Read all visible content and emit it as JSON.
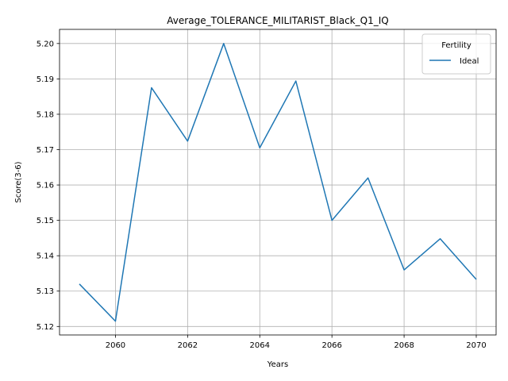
{
  "chart_data": {
    "type": "line",
    "title": "Average_TOLERANCE_MILITARIST_Black_Q1_IQ",
    "xlabel": "Years",
    "ylabel": "Score(3-6)",
    "x": [
      2059,
      2060,
      2061,
      2062,
      2063,
      2064,
      2065,
      2066,
      2067,
      2068,
      2069,
      2070
    ],
    "series": [
      {
        "name": "Ideal",
        "color": "#1f77b4",
        "values": [
          5.132,
          5.1215,
          5.1875,
          5.1724,
          5.2,
          5.1705,
          5.1894,
          5.15,
          5.162,
          5.136,
          5.1448,
          5.1333
        ]
      }
    ],
    "xlim": [
      2058.45,
      2070.55
    ],
    "ylim": [
      5.1176,
      5.204
    ],
    "xticks": [
      2060,
      2062,
      2064,
      2066,
      2068,
      2070
    ],
    "yticks": [
      5.12,
      5.13,
      5.14,
      5.15,
      5.16,
      5.17,
      5.18,
      5.19,
      5.2
    ],
    "ytick_labels": [
      "5.12",
      "5.13",
      "5.14",
      "5.15",
      "5.16",
      "5.17",
      "5.18",
      "5.19",
      "5.20"
    ],
    "grid": true,
    "legend": {
      "title": "Fertility",
      "position": "top-right"
    }
  }
}
